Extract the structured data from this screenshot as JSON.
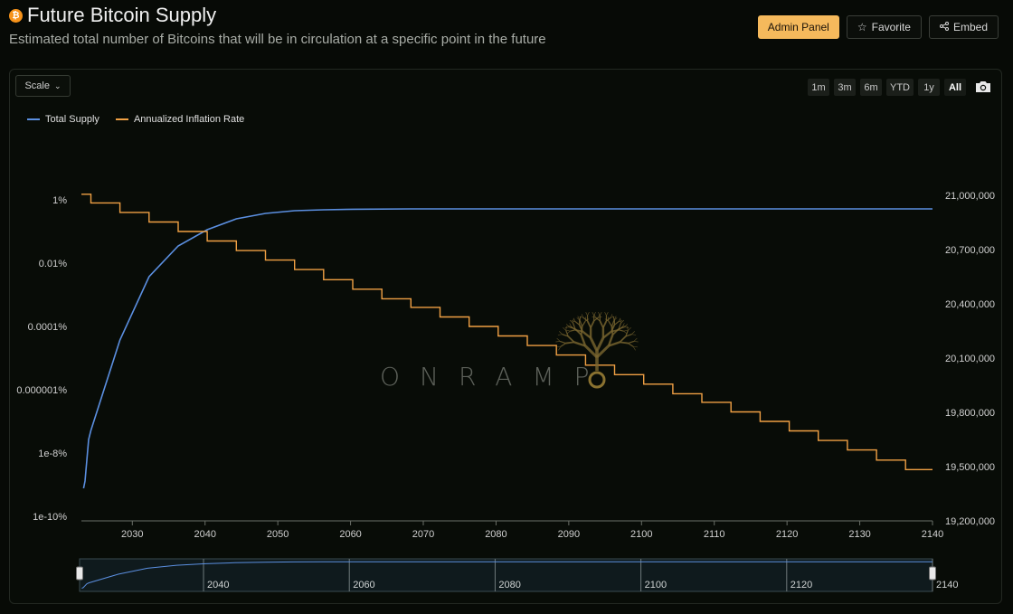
{
  "header": {
    "title": "Future Bitcoin Supply",
    "btc_symbol": "₿",
    "subtitle": "Estimated total number of Bitcoins that will be in circulation at a specific point in the future",
    "admin_label": "Admin Panel",
    "favorite_label": "Favorite",
    "embed_label": "Embed"
  },
  "controls": {
    "scale_label": "Scale",
    "ranges": [
      "1m",
      "3m",
      "6m",
      "YTD",
      "1y",
      "All"
    ],
    "active_range": "All"
  },
  "watermark": "ONRAMP",
  "colors": {
    "supply": "#5b8fe0",
    "inflation": "#f0a044",
    "accent": "#f5b95c"
  },
  "chart_data": {
    "type": "line",
    "x_range": [
      2023,
      2140
    ],
    "x_ticks": [
      "2030",
      "2040",
      "2050",
      "2060",
      "2070",
      "2080",
      "2090",
      "2100",
      "2110",
      "2120",
      "2130",
      "2140"
    ],
    "left_axis": {
      "scale": "log",
      "ticks": [
        "1%",
        "0.01%",
        "0.0001%",
        "0.000001%",
        "1e-8%",
        "1e-10%"
      ]
    },
    "right_axis": {
      "range": [
        19200000,
        21000000
      ],
      "ticks": [
        "21,000,000",
        "20,700,000",
        "20,400,000",
        "20,100,000",
        "19,800,000",
        "19,500,000",
        "19,200,000"
      ]
    },
    "navigator_ticks": [
      "2040",
      "2060",
      "2080",
      "2100",
      "2120",
      "2140"
    ],
    "series": [
      {
        "name": "Total Supply",
        "axis": "right",
        "x": [
          2023.3,
          2023.5,
          2024,
          2024.3,
          2028.3,
          2032.3,
          2036.3,
          2040.3,
          2044.3,
          2048.3,
          2052.3,
          2056.3,
          2060.3,
          2068.3,
          2080,
          2100,
          2140
        ],
        "y": [
          19380000,
          19420000,
          19650000,
          19700000,
          20200000,
          20550000,
          20720000,
          20810000,
          20870000,
          20900000,
          20915000,
          20920000,
          20923000,
          20925000,
          20925000,
          20925000,
          20925000
        ]
      },
      {
        "name": "Annualized Inflation Rate",
        "axis": "left",
        "x": [
          2023.0,
          2024.3,
          2028.3,
          2032.3,
          2036.3,
          2040.3,
          2044.3,
          2048.3,
          2052.3,
          2056.3,
          2060.3,
          2064.3,
          2068.3,
          2072.3,
          2076.3,
          2080.3,
          2084.3,
          2088.3,
          2092.3,
          2096.3,
          2100.3,
          2104.3,
          2108.3,
          2112.3,
          2116.3,
          2120.3,
          2124.3,
          2128.3,
          2132.3,
          2136.3,
          2140
        ],
        "y": [
          1.5,
          0.8,
          0.4,
          0.2,
          0.1,
          0.05,
          0.025,
          0.0125,
          0.00625,
          0.003,
          0.0015,
          0.00075,
          0.0004,
          0.0002,
          0.0001,
          5e-05,
          2.5e-05,
          1.25e-05,
          6e-06,
          3e-06,
          1.5e-06,
          7.5e-07,
          4e-07,
          2e-07,
          1e-07,
          5e-08,
          2.5e-08,
          1.25e-08,
          6e-09,
          3e-09,
          3e-09
        ]
      }
    ]
  }
}
